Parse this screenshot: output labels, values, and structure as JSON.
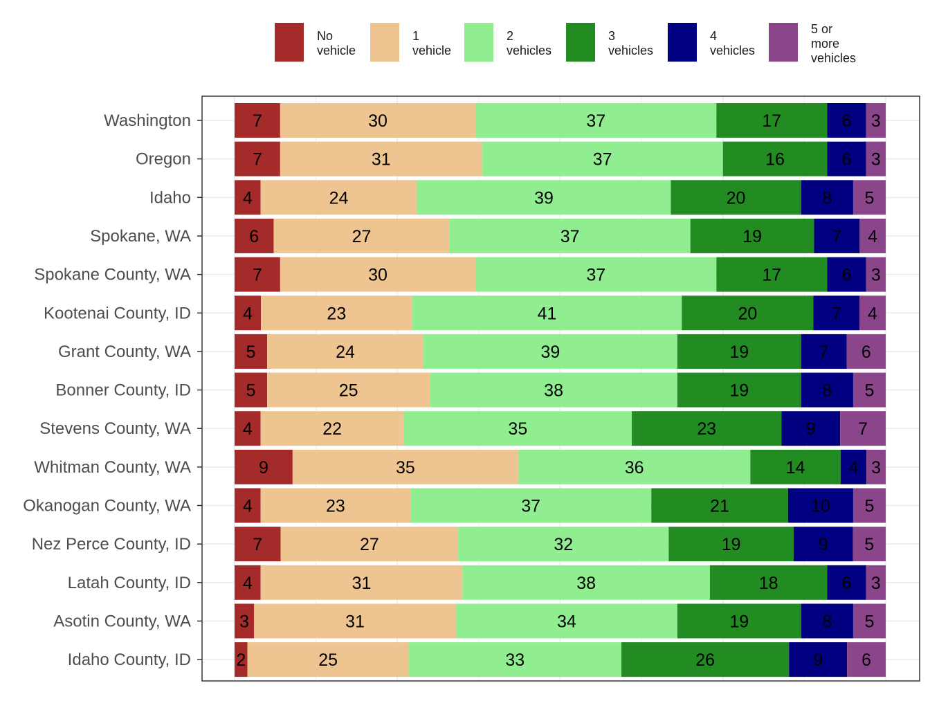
{
  "chart_data": {
    "type": "bar",
    "orientation": "horizontal",
    "stacked": true,
    "units": "percent",
    "categories": [
      "Washington",
      "Oregon",
      "Idaho",
      "Spokane, WA",
      "Spokane County, WA",
      "Kootenai County, ID",
      "Grant County, WA",
      "Bonner County, ID",
      "Stevens County, WA",
      "Whitman County, WA",
      "Okanogan County, WA",
      "Nez Perce County, ID",
      "Latah County, ID",
      "Asotin County, WA",
      "Idaho County, ID"
    ],
    "series": [
      {
        "name": "No vehicle",
        "legend_lines": [
          "No",
          "vehicle"
        ],
        "color": "#A52A2A",
        "values": [
          7,
          7,
          4,
          6,
          7,
          4,
          5,
          5,
          4,
          9,
          4,
          7,
          4,
          3,
          2
        ]
      },
      {
        "name": "1 vehicle",
        "legend_lines": [
          "1",
          "vehicle"
        ],
        "color": "#EEC591",
        "values": [
          30,
          31,
          24,
          27,
          30,
          23,
          24,
          25,
          22,
          35,
          23,
          27,
          31,
          31,
          25
        ]
      },
      {
        "name": "2 vehicles",
        "legend_lines": [
          "2",
          "vehicles"
        ],
        "color": "#90EE90",
        "values": [
          37,
          37,
          39,
          37,
          37,
          41,
          39,
          38,
          35,
          36,
          37,
          32,
          38,
          34,
          33
        ]
      },
      {
        "name": "3 vehicles",
        "legend_lines": [
          "3",
          "vehicles"
        ],
        "color": "#228B22",
        "values": [
          17,
          16,
          20,
          19,
          17,
          20,
          19,
          19,
          23,
          14,
          21,
          19,
          18,
          19,
          26
        ]
      },
      {
        "name": "4 vehicles",
        "legend_lines": [
          "4",
          "vehicles"
        ],
        "color": "#000080",
        "values": [
          6,
          6,
          8,
          7,
          6,
          7,
          7,
          8,
          9,
          4,
          10,
          9,
          6,
          8,
          9
        ]
      },
      {
        "name": "5 or more vehicles",
        "legend_lines": [
          "5 or",
          "more",
          "vehicles"
        ],
        "color": "#8B468B",
        "values": [
          3,
          3,
          5,
          4,
          3,
          4,
          6,
          5,
          7,
          3,
          5,
          5,
          3,
          5,
          6
        ]
      }
    ],
    "title": "",
    "xlabel": "",
    "ylabel": "",
    "legend_position": "top",
    "grid": true
  }
}
